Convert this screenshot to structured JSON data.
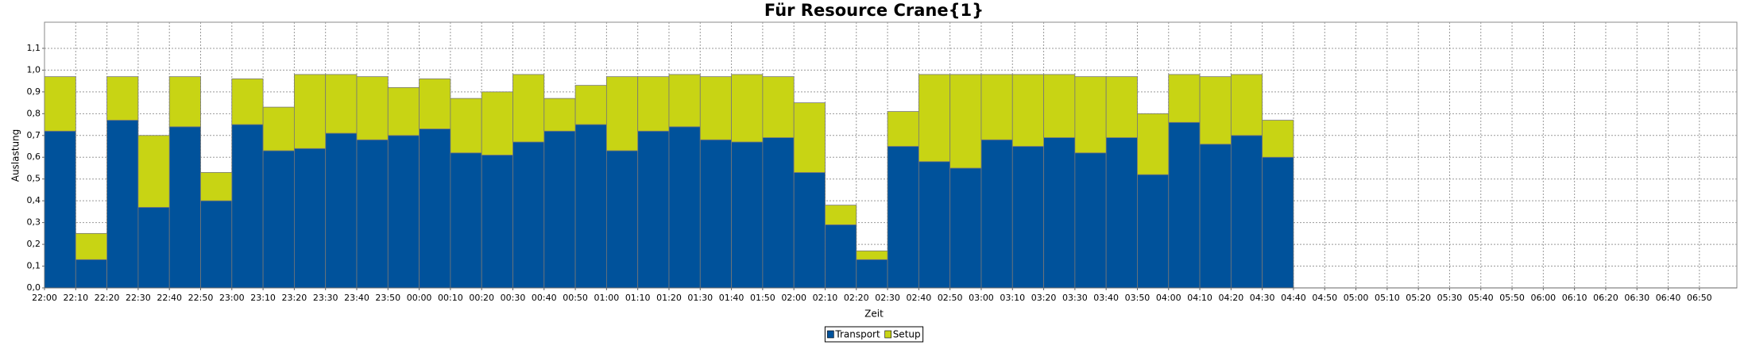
{
  "chart_data": {
    "type": "stacked_bar",
    "title": "Für Resource Crane{1}",
    "x_label": "Zeit",
    "y_label": "Auslastung",
    "categories": [
      "22:00",
      "22:10",
      "22:20",
      "22:30",
      "22:40",
      "22:50",
      "23:00",
      "23:10",
      "23:20",
      "23:30",
      "23:40",
      "23:50",
      "00:00",
      "00:10",
      "00:20",
      "00:30",
      "00:40",
      "00:50",
      "01:00",
      "01:10",
      "01:20",
      "01:30",
      "01:40",
      "01:50",
      "02:00",
      "02:10",
      "02:20",
      "02:30",
      "02:40",
      "02:50",
      "03:00",
      "03:10",
      "03:20",
      "03:30",
      "03:40",
      "03:50",
      "04:00",
      "04:10",
      "04:20",
      "04:30",
      "04:40",
      "04:50",
      "05:00",
      "05:10",
      "05:20",
      "05:30",
      "05:40",
      "05:50",
      "06:00",
      "06:10",
      "06:20",
      "06:30",
      "06:40",
      "06:50"
    ],
    "series": [
      {
        "name": "Transport",
        "color": "#00529b",
        "values": [
          0.72,
          0.13,
          0.77,
          0.37,
          0.74,
          0.4,
          0.75,
          0.63,
          0.64,
          0.71,
          0.68,
          0.7,
          0.73,
          0.62,
          0.61,
          0.67,
          0.72,
          0.75,
          0.63,
          0.72,
          0.74,
          0.68,
          0.67,
          0.69,
          0.53,
          0.29,
          0.13,
          0.65,
          0.58,
          0.55,
          0.68,
          0.65,
          0.69,
          0.62,
          0.69,
          0.52,
          0.76,
          0.66,
          0.7,
          0.6,
          null,
          null,
          null,
          null,
          null,
          null,
          null,
          null,
          null,
          null,
          null,
          null,
          null,
          null
        ]
      },
      {
        "name": "Setup",
        "color": "#c8d414",
        "values": [
          0.25,
          0.12,
          0.2,
          0.33,
          0.23,
          0.13,
          0.21,
          0.2,
          0.34,
          0.27,
          0.29,
          0.22,
          0.23,
          0.25,
          0.29,
          0.31,
          0.15,
          0.18,
          0.34,
          0.25,
          0.24,
          0.29,
          0.31,
          0.28,
          0.32,
          0.09,
          0.04,
          0.16,
          0.4,
          0.43,
          0.3,
          0.33,
          0.29,
          0.35,
          0.28,
          0.28,
          0.22,
          0.31,
          0.28,
          0.17,
          null,
          null,
          null,
          null,
          null,
          null,
          null,
          null,
          null,
          null,
          null,
          null,
          null,
          null
        ]
      }
    ],
    "ylim": [
      0,
      1.22
    ],
    "yticks": [
      {
        "value": 0,
        "label": "0,0"
      },
      {
        "value": 0.1,
        "label": "0,1"
      },
      {
        "value": 0.2,
        "label": "0,2"
      },
      {
        "value": 0.3,
        "label": "0,3"
      },
      {
        "value": 0.4,
        "label": "0,4"
      },
      {
        "value": 0.5,
        "label": "0,5"
      },
      {
        "value": 0.6,
        "label": "0,6"
      },
      {
        "value": 0.7,
        "label": "0,7"
      },
      {
        "value": 0.8,
        "label": "0,8"
      },
      {
        "value": 0.9,
        "label": "0,9"
      },
      {
        "value": 1.0,
        "label": "1,0"
      },
      {
        "value": 1.1,
        "label": "1,1"
      }
    ],
    "grid": true,
    "legend": "bottom"
  }
}
